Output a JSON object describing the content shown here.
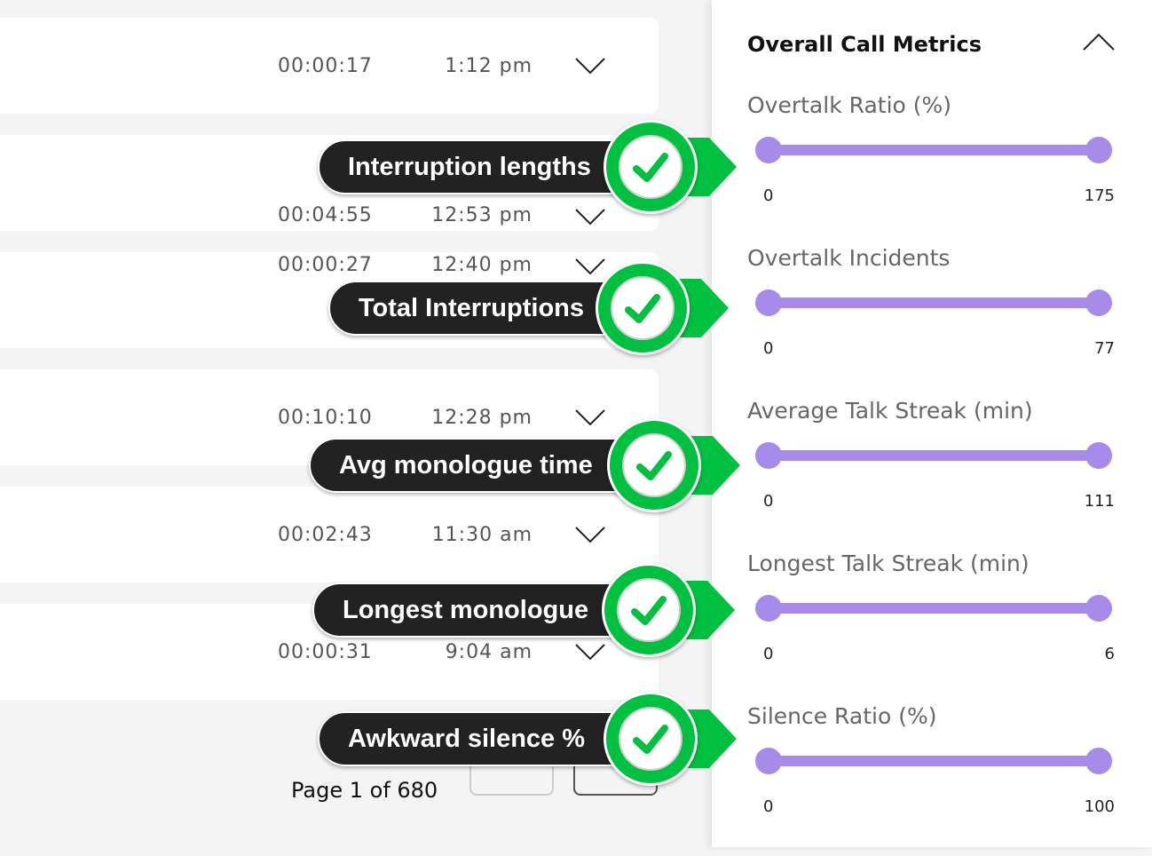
{
  "calls": [
    {
      "duration": "00:00:17",
      "time": "1:12 pm"
    },
    {
      "duration": "00:04:55",
      "time": "12:53 pm"
    },
    {
      "duration": "00:00:27",
      "time": "12:40 pm"
    },
    {
      "duration": "00:10:10",
      "time": "12:28 pm"
    },
    {
      "duration": "00:02:43",
      "time": "11:30 am"
    },
    {
      "duration": "00:00:31",
      "time": "9:04 am"
    }
  ],
  "pagination": {
    "label": "Page 1 of 680"
  },
  "panel": {
    "title": "Overall Call Metrics",
    "metrics": [
      {
        "label": "Overtalk Ratio (%)",
        "min": "0",
        "max": "175"
      },
      {
        "label": "Overtalk Incidents",
        "min": "0",
        "max": "77"
      },
      {
        "label": "Average Talk Streak (min)",
        "min": "0",
        "max": "111"
      },
      {
        "label": "Longest Talk Streak (min)",
        "min": "0",
        "max": "6"
      },
      {
        "label": "Silence Ratio (%)",
        "min": "0",
        "max": "100"
      }
    ]
  },
  "callouts": [
    "Interruption lengths",
    "Total Interruptions",
    "Avg monologue time",
    "Longest monologue",
    "Awkward silence %"
  ],
  "colors": {
    "slider": "#a78bea",
    "callout_green": "#00c040",
    "callout_dark": "#222222"
  }
}
